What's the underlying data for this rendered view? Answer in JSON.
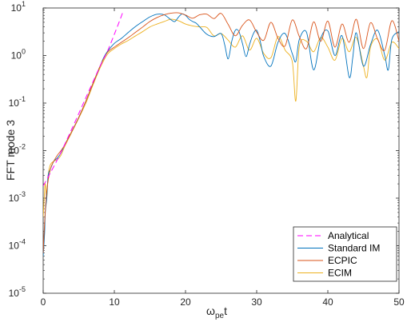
{
  "chart_data": {
    "type": "line",
    "xlabel_main": "ω",
    "xlabel_sub": "pe",
    "xlabel_tail": "t",
    "ylabel": "FFT mode 3",
    "xlim": [
      0,
      50
    ],
    "ylim": [
      1e-05,
      10
    ],
    "yscale": "log",
    "x_ticks": [
      "0",
      "10",
      "20",
      "30",
      "40",
      "50"
    ],
    "y_ticks": [
      {
        "base": "10",
        "exp": "-5",
        "value": 1e-05
      },
      {
        "base": "10",
        "exp": "-4",
        "value": 0.0001
      },
      {
        "base": "10",
        "exp": "-3",
        "value": 0.001
      },
      {
        "base": "10",
        "exp": "-2",
        "value": 0.01
      },
      {
        "base": "10",
        "exp": "-1",
        "value": 0.1
      },
      {
        "base": "10",
        "exp": "0",
        "value": 1
      },
      {
        "base": "10",
        "exp": "1",
        "value": 10
      }
    ],
    "grid": false,
    "legend_position": "bottom-right",
    "series": [
      {
        "name": "Analytical",
        "color": "#ff00ff",
        "dash": "dashed",
        "x": [
          0,
          2,
          4,
          6,
          8,
          9,
          10,
          11,
          11.2
        ],
        "y": [
          0.0018,
          0.0065,
          0.028,
          0.13,
          0.6,
          1.2,
          2.8,
          6.8,
          8.5
        ]
      },
      {
        "name": "Standard IM",
        "color": "#0072bd",
        "dash": "solid",
        "x": [
          0,
          0.2,
          0.3,
          0.5,
          0.7,
          1,
          1.5,
          2,
          2.5,
          3,
          4,
          5,
          6,
          7,
          8,
          8.5,
          9,
          10,
          11,
          12,
          13,
          14,
          15,
          16,
          17,
          18,
          18.5,
          19,
          19.5,
          20,
          20.5,
          21,
          21.5,
          22,
          23,
          24,
          25,
          25.5,
          26,
          26.5,
          27,
          27.5,
          28,
          28.5,
          29,
          29.5,
          30,
          30.5,
          31,
          32,
          33,
          34,
          35,
          35.5,
          36,
          37,
          38,
          39,
          40,
          41,
          42,
          43,
          43.5,
          44,
          45,
          46,
          47,
          48,
          48.5,
          49,
          50
        ],
        "y": [
          6e-05,
          0.00018,
          0.0005,
          0.001,
          0.003,
          0.004,
          0.006,
          0.007,
          0.009,
          0.013,
          0.025,
          0.05,
          0.11,
          0.26,
          0.6,
          0.9,
          1.2,
          1.8,
          2.3,
          3.1,
          4.1,
          5.2,
          6.5,
          7.4,
          7.2,
          5.6,
          5.2,
          6.4,
          7.5,
          7.0,
          5.8,
          5.2,
          4.8,
          4.0,
          2.8,
          2.5,
          2.9,
          1.7,
          0.85,
          2.0,
          3.4,
          3.2,
          1.8,
          0.95,
          1.7,
          2.8,
          3.4,
          2.0,
          0.95,
          0.6,
          1.9,
          2.9,
          1.1,
          0.75,
          2.2,
          3.1,
          0.5,
          2.3,
          3.3,
          1.0,
          2.6,
          0.35,
          0.9,
          3.0,
          0.6,
          1.7,
          3.4,
          1.0,
          0.5,
          2.2,
          3.2
        ]
      },
      {
        "name": "ECPIC",
        "color": "#d95319",
        "dash": "solid",
        "x": [
          0,
          0.2,
          0.5,
          1,
          1.5,
          2,
          2.5,
          3,
          4,
          5,
          6,
          7,
          8,
          9,
          10,
          11,
          12,
          13,
          14,
          15,
          16,
          17,
          18,
          19,
          20,
          21,
          22,
          23,
          24,
          25,
          26,
          27,
          28,
          29,
          30,
          31,
          32,
          33,
          34,
          35,
          36,
          37,
          38,
          39,
          40,
          41,
          42,
          43,
          44,
          45,
          46,
          47,
          48,
          49,
          50
        ],
        "y": [
          7e-05,
          0.0003,
          0.0014,
          0.004,
          0.006,
          0.008,
          0.01,
          0.013,
          0.025,
          0.05,
          0.11,
          0.26,
          0.6,
          1.15,
          1.5,
          1.9,
          2.4,
          3.1,
          4.0,
          5.2,
          6.3,
          7.2,
          7.8,
          7.9,
          7.1,
          6.1,
          7.2,
          7.4,
          6.0,
          7.7,
          4.5,
          2.6,
          4.3,
          5.6,
          3.1,
          2.1,
          5.0,
          2.3,
          1.6,
          5.6,
          2.5,
          1.4,
          5.1,
          2.0,
          5.3,
          1.5,
          4.6,
          1.9,
          5.8,
          1.4,
          4.9,
          2.2,
          1.3,
          5.4,
          2.0
        ]
      },
      {
        "name": "ECIM",
        "color": "#edb120",
        "dash": "solid",
        "x": [
          0,
          0.2,
          0.3,
          0.5,
          0.7,
          1,
          1.5,
          2,
          2.5,
          3,
          4,
          5,
          6,
          7,
          8,
          9,
          10,
          11,
          12,
          13,
          14,
          15,
          16,
          17,
          18,
          19,
          20,
          21,
          22,
          23,
          24,
          25,
          26,
          27,
          28,
          29,
          30,
          31,
          32,
          33,
          34,
          35,
          35.5,
          36,
          37,
          38,
          39,
          40,
          41,
          42,
          43,
          44,
          45,
          45.5,
          46,
          47,
          48,
          49,
          50
        ],
        "y": [
          0.0004,
          0.0014,
          0.002,
          0.001,
          0.003,
          0.005,
          0.006,
          0.0065,
          0.008,
          0.012,
          0.024,
          0.048,
          0.1,
          0.24,
          0.55,
          1.05,
          1.4,
          1.75,
          2.1,
          2.6,
          3.2,
          4.0,
          4.6,
          5.2,
          5.8,
          5.4,
          4.6,
          4.2,
          4.0,
          3.9,
          2.6,
          2.9,
          2.1,
          1.5,
          2.6,
          1.3,
          2.3,
          1.1,
          0.9,
          2.5,
          1.3,
          0.75,
          0.11,
          1.6,
          2.0,
          1.2,
          2.4,
          1.5,
          0.8,
          2.3,
          1.2,
          2.4,
          0.6,
          0.35,
          1.5,
          2.2,
          0.8,
          1.9,
          1.4
        ]
      }
    ]
  }
}
